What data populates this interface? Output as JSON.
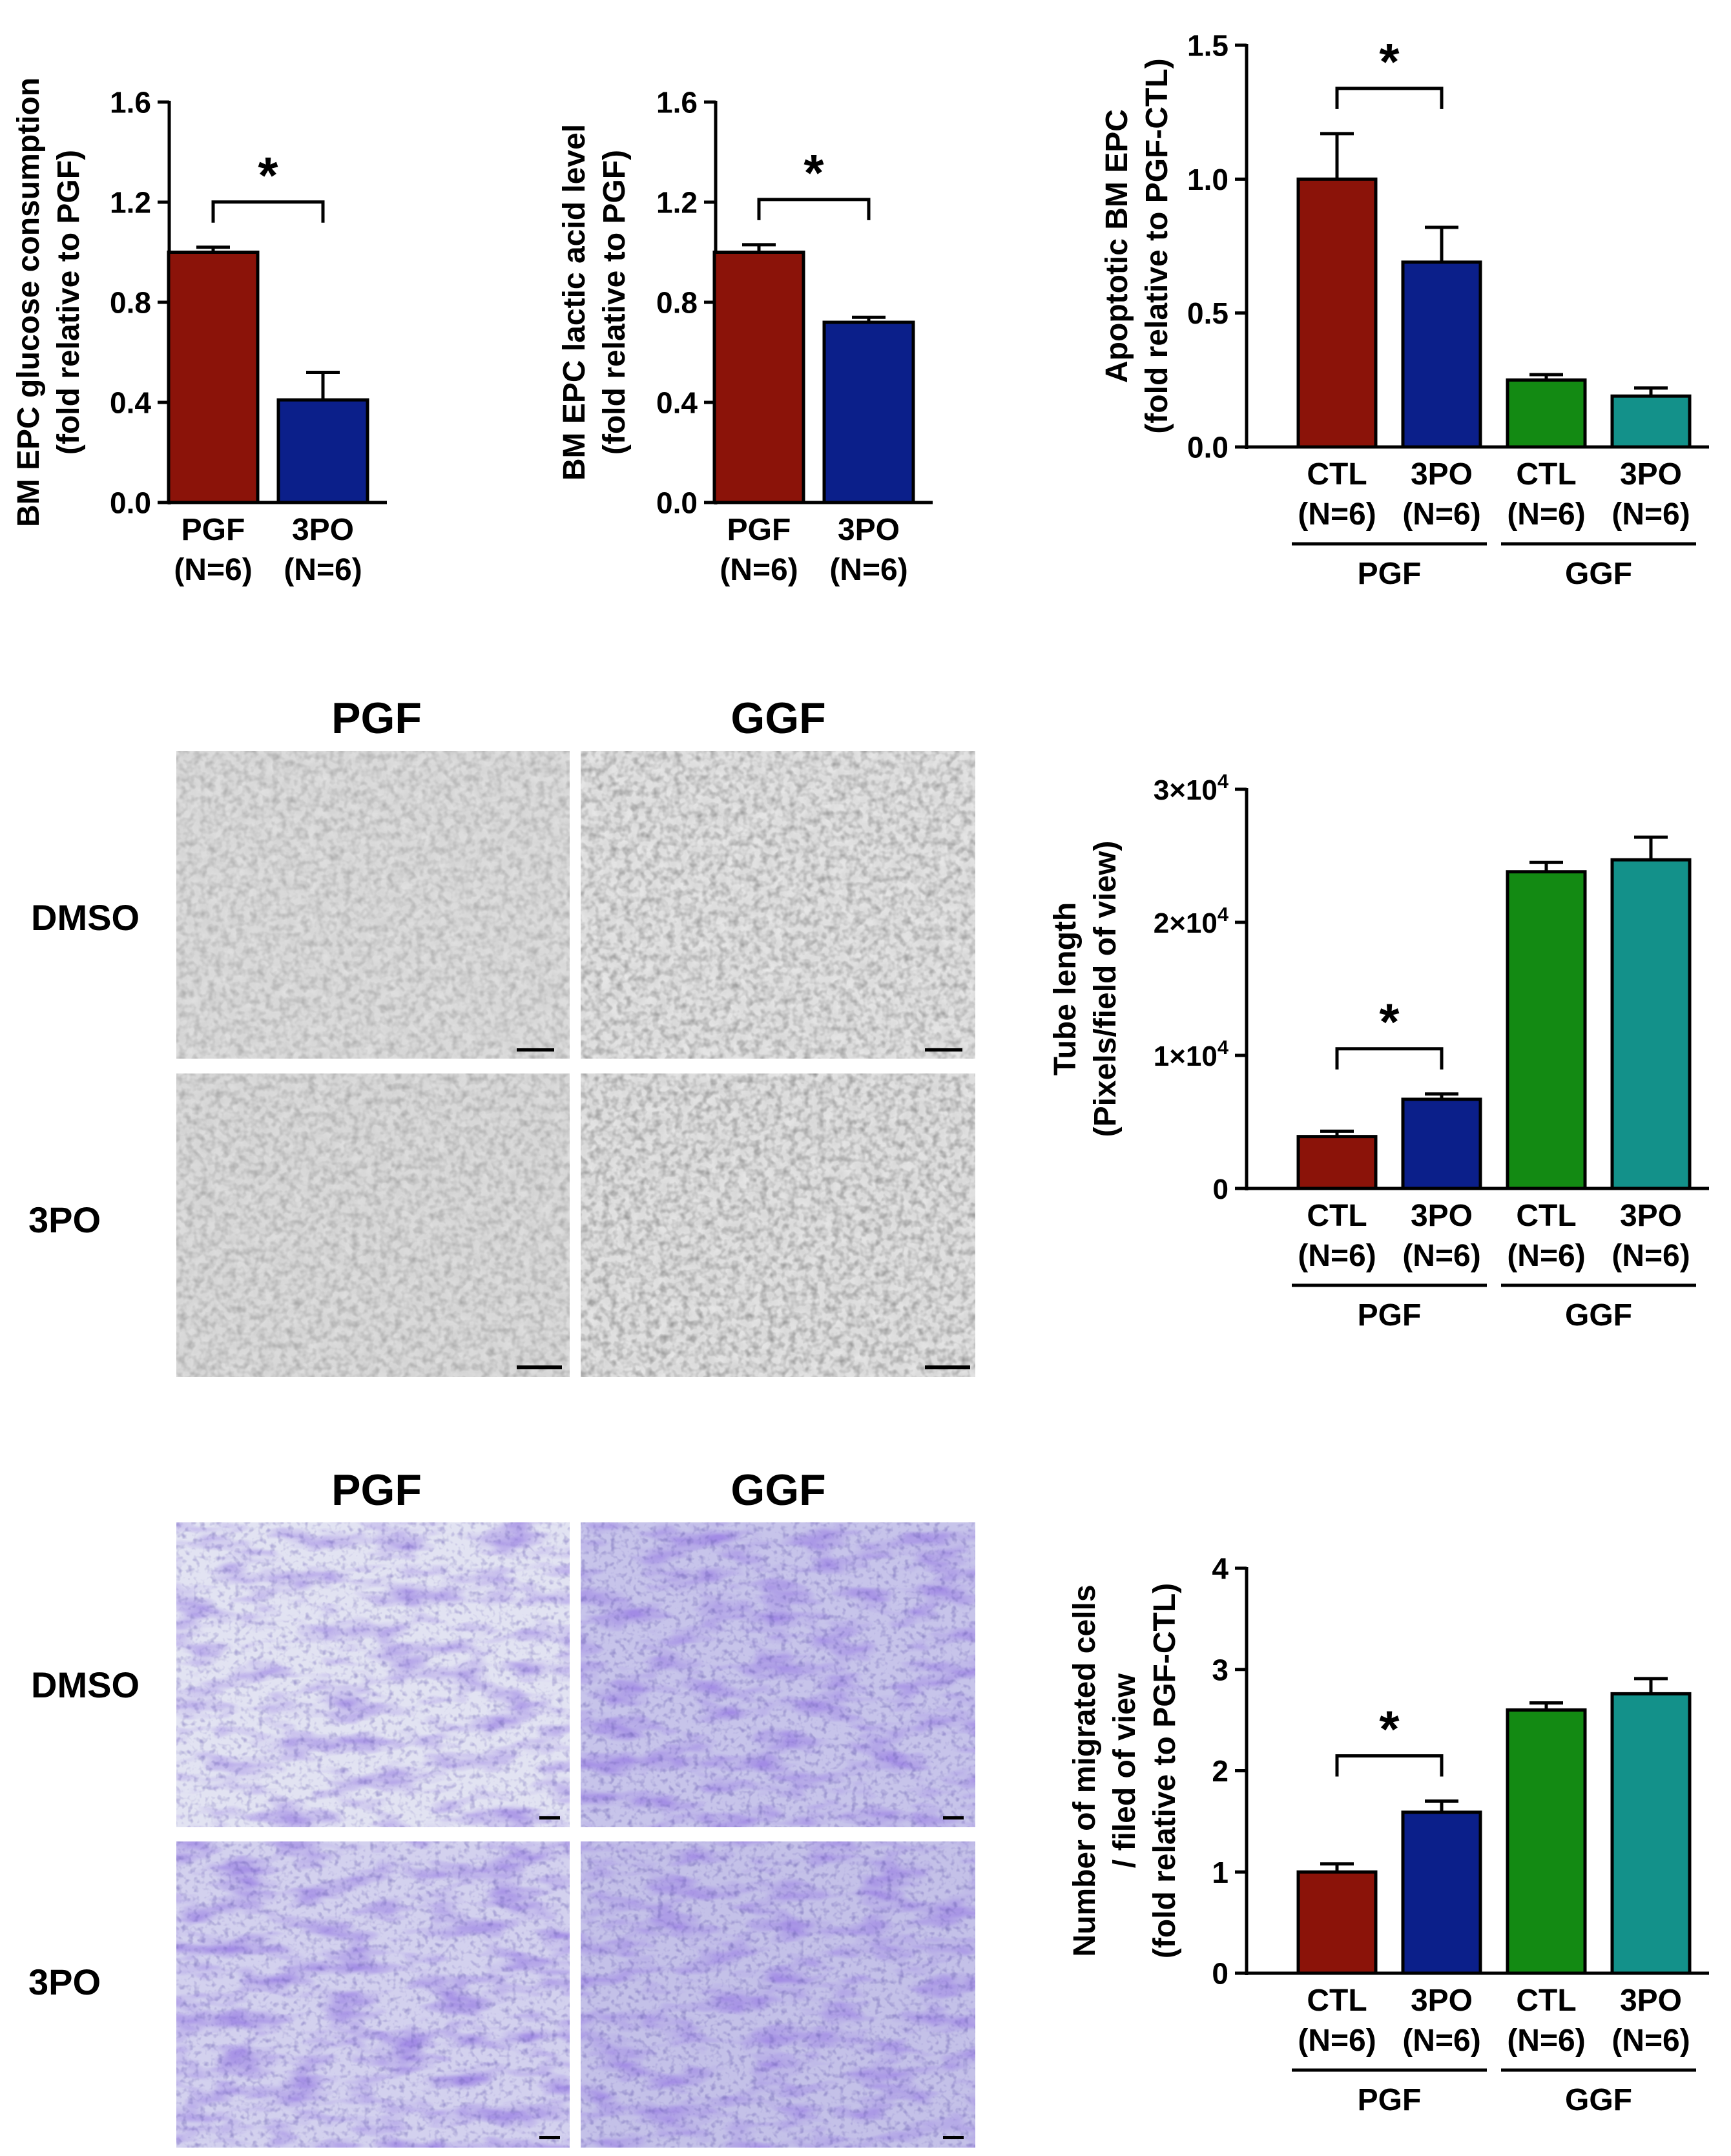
{
  "colors": {
    "pgf_ctl": "#8b1309",
    "pgf_3po": "#0b1f8a",
    "ggf_ctl": "#138a13",
    "ggf_3po": "#13918a",
    "axis": "#000000"
  },
  "micrographs": {
    "tube": {
      "col_labels": [
        "PGF",
        "GGF"
      ],
      "row_labels": [
        "DMSO",
        "3PO"
      ],
      "style": "brightfield tube formation"
    },
    "migration": {
      "col_labels": [
        "PGF",
        "GGF"
      ],
      "row_labels": [
        "DMSO",
        "3PO"
      ],
      "style": "crystal violet transwell migration"
    }
  },
  "chart_data": [
    {
      "id": "glucose",
      "type": "bar",
      "ylabel_lines": [
        "BM EPC glucose consumption",
        "(fold relative to PGF)"
      ],
      "ylim": [
        0,
        1.6
      ],
      "yticks": [
        "0.0",
        "0.4",
        "0.8",
        "1.2",
        "1.6"
      ],
      "categories": [
        [
          "PGF",
          "(N=6)"
        ],
        [
          "3PO",
          "(N=6)"
        ]
      ],
      "values": [
        1.0,
        0.41
      ],
      "errors": [
        0.02,
        0.11
      ],
      "color_keys": [
        "pgf_ctl",
        "pgf_3po"
      ],
      "significance": {
        "from": 0,
        "to": 1,
        "label": "*"
      },
      "groups": []
    },
    {
      "id": "lactic",
      "type": "bar",
      "ylabel_lines": [
        "BM EPC lactic acid level",
        "(fold relative to PGF)"
      ],
      "ylim": [
        0,
        1.6
      ],
      "yticks": [
        "0.0",
        "0.4",
        "0.8",
        "1.2",
        "1.6"
      ],
      "categories": [
        [
          "PGF",
          "(N=6)"
        ],
        [
          "3PO",
          "(N=6)"
        ]
      ],
      "values": [
        1.0,
        0.72
      ],
      "errors": [
        0.03,
        0.02
      ],
      "color_keys": [
        "pgf_ctl",
        "pgf_3po"
      ],
      "significance": {
        "from": 0,
        "to": 1,
        "label": "*"
      },
      "groups": []
    },
    {
      "id": "apoptosis",
      "type": "bar",
      "ylabel_lines": [
        "Apoptotic BM EPC",
        "(fold relative to PGF-CTL)"
      ],
      "ylim": [
        0,
        1.5
      ],
      "yticks": [
        "0.0",
        "0.5",
        "1.0",
        "1.5"
      ],
      "categories": [
        [
          "CTL",
          "(N=6)"
        ],
        [
          "3PO",
          "(N=6)"
        ],
        [
          "CTL",
          "(N=6)"
        ],
        [
          "3PO",
          "(N=6)"
        ]
      ],
      "values": [
        1.0,
        0.69,
        0.25,
        0.19
      ],
      "errors": [
        0.17,
        0.13,
        0.02,
        0.03
      ],
      "color_keys": [
        "pgf_ctl",
        "pgf_3po",
        "ggf_ctl",
        "ggf_3po"
      ],
      "significance": {
        "from": 0,
        "to": 1,
        "label": "*"
      },
      "groups": [
        {
          "label": "PGF",
          "from": 0,
          "to": 1
        },
        {
          "label": "GGF",
          "from": 2,
          "to": 3
        }
      ]
    },
    {
      "id": "tube",
      "type": "bar",
      "ylabel_lines": [
        "Tube length",
        "(Pixels/field of view)"
      ],
      "ylim": [
        0,
        30000
      ],
      "yticks": [
        "0",
        "1×10^4",
        "2×10^4",
        "3×10^4"
      ],
      "categories": [
        [
          "CTL",
          "(N=6)"
        ],
        [
          "3PO",
          "(N=6)"
        ],
        [
          "CTL",
          "(N=6)"
        ],
        [
          "3PO",
          "(N=6)"
        ]
      ],
      "values": [
        3900,
        6700,
        23800,
        24700
      ],
      "errors": [
        400,
        400,
        700,
        1700
      ],
      "color_keys": [
        "pgf_ctl",
        "pgf_3po",
        "ggf_ctl",
        "ggf_3po"
      ],
      "significance": {
        "from": 0,
        "to": 1,
        "label": "*"
      },
      "groups": [
        {
          "label": "PGF",
          "from": 0,
          "to": 1
        },
        {
          "label": "GGF",
          "from": 2,
          "to": 3
        }
      ]
    },
    {
      "id": "migration",
      "type": "bar",
      "ylabel_lines": [
        "Number of migrated cells",
        "/ filed of view",
        "(fold relative to PGF-CTL)"
      ],
      "ylim": [
        0,
        4
      ],
      "yticks": [
        "0",
        "1",
        "2",
        "3",
        "4"
      ],
      "categories": [
        [
          "CTL",
          "(N=6)"
        ],
        [
          "3PO",
          "(N=6)"
        ],
        [
          "CTL",
          "(N=6)"
        ],
        [
          "3PO",
          "(N=6)"
        ]
      ],
      "values": [
        1.0,
        1.59,
        2.6,
        2.76
      ],
      "errors": [
        0.08,
        0.11,
        0.07,
        0.15
      ],
      "color_keys": [
        "pgf_ctl",
        "pgf_3po",
        "ggf_ctl",
        "ggf_3po"
      ],
      "significance": {
        "from": 0,
        "to": 1,
        "label": "*"
      },
      "groups": [
        {
          "label": "PGF",
          "from": 0,
          "to": 1
        },
        {
          "label": "GGF",
          "from": 2,
          "to": 3
        }
      ]
    }
  ]
}
